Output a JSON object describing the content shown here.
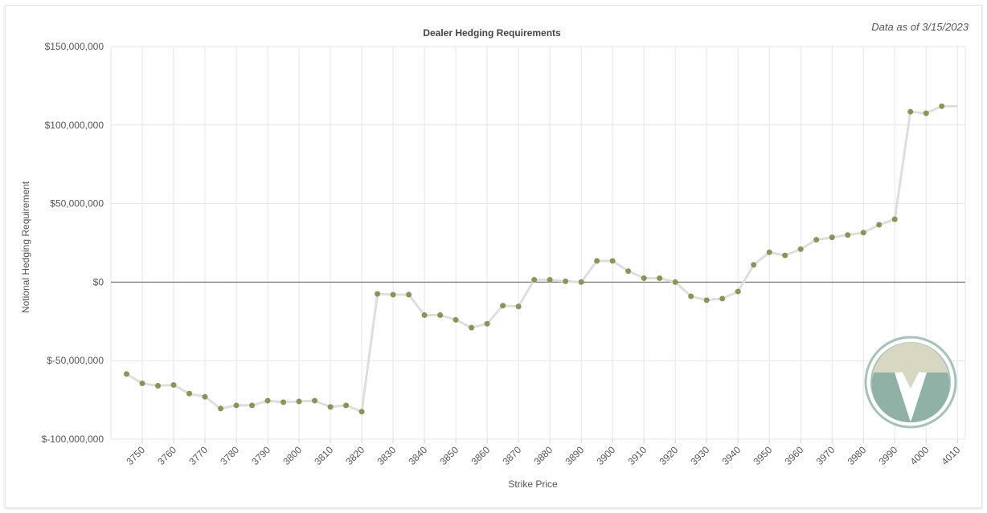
{
  "chart_data": {
    "type": "line",
    "title": "Dealer Hedging Requirements",
    "annotation": "Data as of 3/15/2023",
    "xlabel": "Strike Price",
    "ylabel": "Notional Hedging Requirement",
    "ylim": [
      -100000000,
      150000000
    ],
    "yticks": [
      150000000,
      100000000,
      50000000,
      0,
      -50000000,
      -100000000
    ],
    "ytick_labels": [
      "$150,000,000",
      "$100,000,000",
      "$50,000,000",
      "$0",
      "$-50,000,000",
      "$-100,000,000"
    ],
    "xtick_labels": [
      "3750",
      "3760",
      "3770",
      "3780",
      "3790",
      "3800",
      "3810",
      "3820",
      "3830",
      "3840",
      "3850",
      "3860",
      "3870",
      "3880",
      "3890",
      "3900",
      "3910",
      "3920",
      "3930",
      "3940",
      "3950",
      "3960",
      "3970",
      "3980",
      "3990",
      "4000",
      "4010"
    ],
    "grid": true,
    "legend": "none",
    "colors": {
      "line": "#dedede",
      "marker": "#8b9457",
      "zero_line": "#555555",
      "grid": "#e6e6e6"
    },
    "x": [
      3745,
      3750,
      3755,
      3760,
      3765,
      3770,
      3775,
      3780,
      3785,
      3790,
      3795,
      3800,
      3805,
      3810,
      3815,
      3820,
      3825,
      3830,
      3835,
      3840,
      3845,
      3850,
      3855,
      3860,
      3865,
      3870,
      3875,
      3880,
      3885,
      3890,
      3895,
      3900,
      3905,
      3910,
      3915,
      3920,
      3925,
      3930,
      3935,
      3940,
      3945,
      3950,
      3955,
      3960,
      3965,
      3970,
      3975,
      3980,
      3985,
      3990,
      3995,
      4000,
      4005,
      4010
    ],
    "series": [
      {
        "values": [
          -58500000,
          -64500000,
          -66000000,
          -65500000,
          -71000000,
          -73000000,
          -80500000,
          -78500000,
          -78500000,
          -75500000,
          -76500000,
          -76000000,
          -75500000,
          -79500000,
          -78500000,
          -82500000,
          -7500000,
          -8000000,
          -8000000,
          -21000000,
          -21000000,
          -24000000,
          -29000000,
          -26500000,
          -15000000,
          -15500000,
          1500000,
          1500000,
          500000,
          0,
          13500000,
          13500000,
          7000000,
          2500000,
          2500000,
          0,
          -9000000,
          -11500000,
          -10500000,
          -6000000,
          11000000,
          19000000,
          17000000,
          21000000,
          27000000,
          28500000,
          30000000,
          31500000,
          36500000,
          40000000,
          108500000,
          107500000,
          112000000,
          112000000
        ]
      }
    ]
  },
  "logo": {
    "name": "logo-watermark",
    "colors": {
      "ring": "#a6c2b8",
      "top": "#d8d8c2",
      "bottom": "#8fb1a6"
    }
  }
}
